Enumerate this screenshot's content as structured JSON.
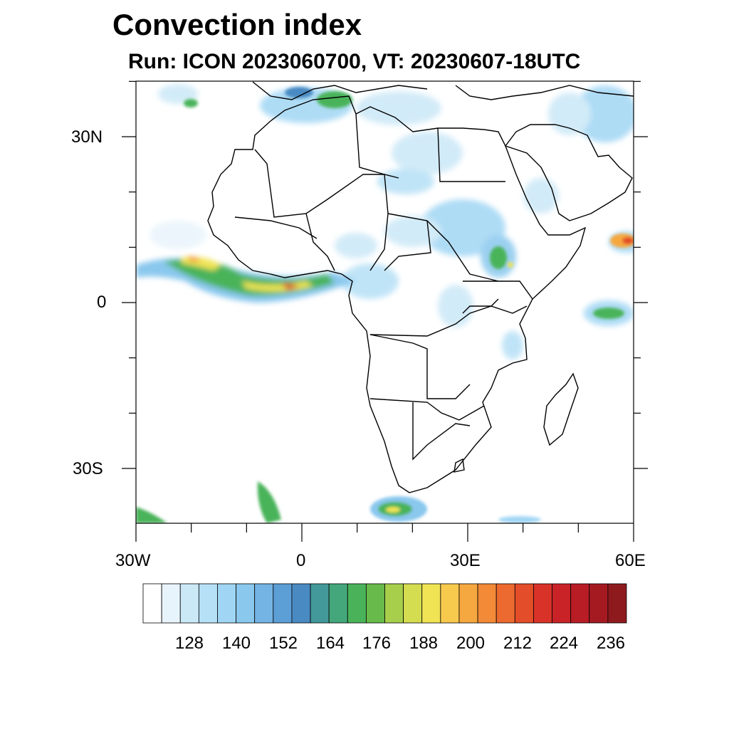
{
  "title": "Convection index",
  "subtitle": "Run: ICON 2023060700,  VT: 20230607-18UTC",
  "axes": {
    "lat_labels": [
      "30N",
      "0",
      "30S"
    ],
    "lon_labels": [
      "30W",
      "0",
      "30E",
      "60E"
    ]
  },
  "colorbar": {
    "labels": [
      "128",
      "140",
      "152",
      "164",
      "176",
      "188",
      "200",
      "212",
      "224",
      "236"
    ],
    "colors": [
      "#ffffff",
      "#e8f4fb",
      "#cbe8f7",
      "#b6e0f6",
      "#a0d6f4",
      "#8ac8ee",
      "#74b4e4",
      "#5c9fd6",
      "#4a8ac2",
      "#43999a",
      "#44a77c",
      "#4ab35a",
      "#68bb4a",
      "#a8cf4c",
      "#d4dc50",
      "#f0e455",
      "#f7c94d",
      "#f6a840",
      "#f28a37",
      "#ec6a2f",
      "#e34d2a",
      "#d93329",
      "#c92327",
      "#b81c25",
      "#a51a21",
      "#8e1a1d"
    ]
  },
  "map": {
    "lon_range": [
      -30,
      60
    ],
    "lat_range": [
      -40,
      40
    ],
    "coastline_color": "#000000",
    "convection_areas": [
      {
        "lon": -12,
        "lat": 8,
        "level": "high"
      },
      {
        "lon": -6,
        "lat": 4,
        "level": "high"
      },
      {
        "lon": 2,
        "lat": 4,
        "level": "moderate"
      },
      {
        "lon": 58,
        "lat": 11,
        "level": "high"
      },
      {
        "lon": 18,
        "lat": -37,
        "level": "moderate"
      },
      {
        "lon": -7,
        "lat": -36,
        "level": "moderate"
      },
      {
        "lon": 36,
        "lat": 8,
        "level": "moderate"
      },
      {
        "lon": 55,
        "lat": 0,
        "level": "moderate"
      }
    ]
  }
}
